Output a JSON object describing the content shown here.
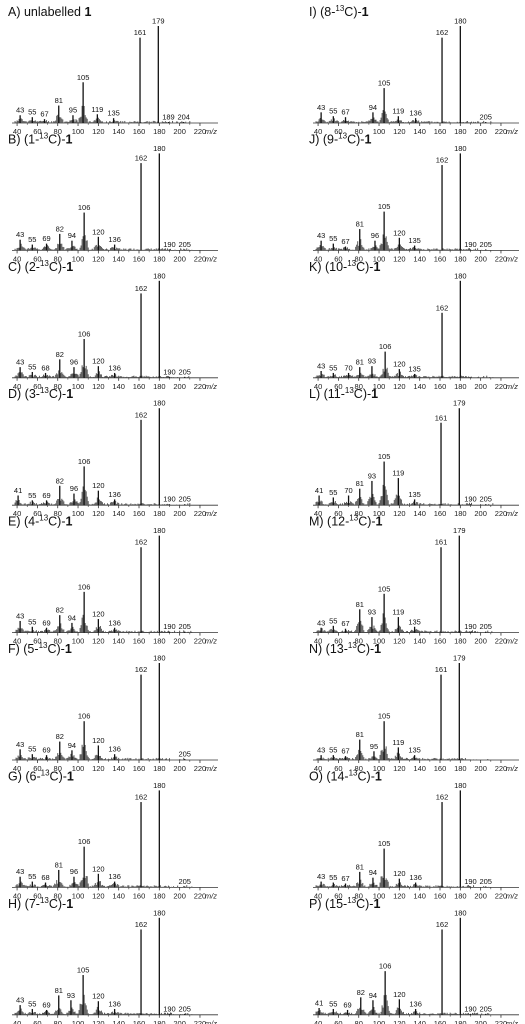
{
  "chart_data": [
    {
      "type": "bar",
      "title": "A) unlabelled 1",
      "x": [
        43,
        55,
        67,
        81,
        95,
        105,
        119,
        135,
        161,
        179,
        189,
        204
      ],
      "values": [
        8,
        6,
        4,
        18,
        8,
        42,
        9,
        5,
        88,
        100,
        1,
        1
      ],
      "labels": [
        43,
        55,
        67,
        81,
        95,
        105,
        119,
        135,
        161,
        179,
        189,
        204
      ],
      "xlabel": "m/z",
      "xticks": [
        40,
        60,
        80,
        100,
        120,
        140,
        160,
        180,
        200,
        220
      ],
      "xlim": [
        35,
        222
      ],
      "ylim": [
        0,
        100
      ]
    },
    {
      "type": "bar",
      "title": "I) (8-13C)-1",
      "x": [
        43,
        55,
        67,
        94,
        105,
        119,
        136,
        162,
        180,
        205
      ],
      "values": [
        11,
        7,
        6,
        11,
        36,
        7,
        5,
        88,
        100,
        1
      ],
      "labels": [
        43,
        55,
        67,
        94,
        105,
        119,
        136,
        162,
        180,
        205
      ],
      "xlabel": "m/z",
      "xticks": [
        40,
        60,
        80,
        100,
        120,
        140,
        160,
        180,
        200,
        220
      ],
      "xlim": [
        35,
        222
      ],
      "ylim": [
        0,
        100
      ]
    },
    {
      "type": "bar",
      "title": "B) (1-13C)-1",
      "x": [
        43,
        55,
        69,
        82,
        94,
        106,
        120,
        136,
        162,
        180,
        190,
        205
      ],
      "values": [
        11,
        6,
        7,
        17,
        10,
        39,
        14,
        6,
        90,
        100,
        1,
        1
      ],
      "labels": [
        43,
        55,
        69,
        82,
        94,
        106,
        120,
        136,
        162,
        180,
        190,
        205
      ],
      "xlabel": "m/z",
      "xticks": [
        40,
        60,
        80,
        100,
        120,
        140,
        160,
        180,
        200,
        220
      ],
      "xlim": [
        35,
        222
      ],
      "ylim": [
        0,
        100
      ]
    },
    {
      "type": "bar",
      "title": "J) (9-13C)-1",
      "x": [
        43,
        55,
        67,
        81,
        96,
        105,
        120,
        135,
        162,
        180,
        190,
        205
      ],
      "values": [
        10,
        7,
        4,
        22,
        10,
        40,
        13,
        5,
        88,
        100,
        1,
        1
      ],
      "labels": [
        43,
        55,
        67,
        81,
        96,
        105,
        120,
        135,
        162,
        180,
        190,
        205
      ],
      "xlabel": "m/z",
      "xticks": [
        40,
        60,
        80,
        100,
        120,
        140,
        160,
        180,
        200,
        220
      ],
      "xlim": [
        35,
        222
      ],
      "ylim": [
        0,
        100
      ]
    },
    {
      "type": "bar",
      "title": "C) (2-13C)-1",
      "x": [
        43,
        55,
        68,
        82,
        96,
        106,
        120,
        136,
        162,
        180,
        190,
        205
      ],
      "values": [
        11,
        6,
        5,
        19,
        11,
        40,
        12,
        5,
        87,
        100,
        1,
        1
      ],
      "labels": [
        43,
        55,
        68,
        82,
        96,
        106,
        120,
        136,
        162,
        180,
        190,
        205
      ],
      "xlabel": "m/z",
      "xticks": [
        40,
        60,
        80,
        100,
        120,
        140,
        160,
        180,
        200,
        220
      ],
      "xlim": [
        35,
        222
      ],
      "ylim": [
        0,
        100
      ]
    },
    {
      "type": "bar",
      "title": "K) (10-13C)-1",
      "x": [
        43,
        55,
        70,
        81,
        93,
        106,
        120,
        135,
        162,
        180
      ],
      "values": [
        7,
        5,
        5,
        11,
        12,
        27,
        9,
        4,
        67,
        100
      ],
      "labels": [
        43,
        55,
        70,
        81,
        93,
        106,
        120,
        135,
        162,
        180
      ],
      "xlabel": "m/z",
      "xticks": [
        40,
        60,
        80,
        100,
        120,
        140,
        160,
        180,
        200,
        220
      ],
      "xlim": [
        35,
        222
      ],
      "ylim": [
        0,
        100
      ]
    },
    {
      "type": "bar",
      "title": "D) (3-13C)-1",
      "x": [
        41,
        55,
        69,
        82,
        96,
        106,
        120,
        136,
        162,
        180,
        190,
        205
      ],
      "values": [
        10,
        5,
        5,
        20,
        12,
        40,
        15,
        6,
        88,
        100,
        1,
        1
      ],
      "labels": [
        41,
        55,
        69,
        82,
        96,
        106,
        120,
        136,
        162,
        180,
        190,
        205
      ],
      "xlabel": "m/z",
      "xticks": [
        40,
        60,
        80,
        100,
        120,
        140,
        160,
        180,
        200,
        220
      ],
      "xlim": [
        35,
        222
      ],
      "ylim": [
        0,
        100
      ]
    },
    {
      "type": "bar",
      "title": "L) (11-13C)-1",
      "x": [
        41,
        55,
        70,
        81,
        93,
        105,
        119,
        135,
        161,
        179,
        190,
        205
      ],
      "values": [
        10,
        8,
        10,
        17,
        25,
        45,
        28,
        6,
        85,
        100,
        1,
        1
      ],
      "labels": [
        41,
        55,
        70,
        81,
        93,
        105,
        119,
        135,
        161,
        179,
        190,
        205
      ],
      "xlabel": "m/z",
      "xticks": [
        40,
        60,
        80,
        100,
        120,
        140,
        160,
        180,
        200,
        220
      ],
      "xlim": [
        35,
        222
      ],
      "ylim": [
        0,
        100
      ]
    },
    {
      "type": "bar",
      "title": "E) (4-13C)-1",
      "x": [
        43,
        55,
        69,
        82,
        94,
        106,
        120,
        136,
        162,
        180,
        190,
        205
      ],
      "values": [
        12,
        6,
        5,
        18,
        10,
        42,
        14,
        5,
        88,
        100,
        1,
        1
      ],
      "labels": [
        43,
        55,
        69,
        82,
        94,
        106,
        120,
        136,
        162,
        180,
        190,
        205
      ],
      "xlabel": "m/z",
      "xticks": [
        40,
        60,
        80,
        100,
        120,
        140,
        160,
        180,
        200,
        220
      ],
      "xlim": [
        35,
        222
      ],
      "ylim": [
        0,
        100
      ]
    },
    {
      "type": "bar",
      "title": "M) (12-13C)-1",
      "x": [
        43,
        55,
        67,
        81,
        93,
        105,
        119,
        135,
        161,
        179,
        190,
        205
      ],
      "values": [
        5,
        7,
        4,
        24,
        16,
        40,
        16,
        6,
        88,
        100,
        1,
        1
      ],
      "labels": [
        43,
        55,
        67,
        81,
        93,
        105,
        119,
        135,
        161,
        179,
        190,
        205
      ],
      "xlabel": "m/z",
      "xticks": [
        40,
        60,
        80,
        100,
        120,
        140,
        160,
        180,
        200,
        220
      ],
      "xlim": [
        35,
        222
      ],
      "ylim": [
        0,
        100
      ]
    },
    {
      "type": "bar",
      "title": "F) (5-13C)-1",
      "x": [
        43,
        55,
        69,
        82,
        94,
        106,
        120,
        136,
        162,
        180,
        205
      ],
      "values": [
        11,
        6,
        5,
        19,
        10,
        40,
        15,
        6,
        88,
        100,
        1
      ],
      "labels": [
        43,
        55,
        69,
        82,
        94,
        106,
        120,
        136,
        162,
        180,
        205
      ],
      "xlabel": "m/z",
      "xticks": [
        40,
        60,
        80,
        100,
        120,
        140,
        160,
        180,
        200,
        220
      ],
      "xlim": [
        35,
        222
      ],
      "ylim": [
        0,
        100
      ]
    },
    {
      "type": "bar",
      "title": "N) (13-13C)-1",
      "x": [
        43,
        55,
        67,
        81,
        95,
        105,
        119,
        135,
        161,
        179
      ],
      "values": [
        5,
        5,
        4,
        21,
        9,
        40,
        13,
        5,
        88,
        100
      ],
      "labels": [
        43,
        55,
        67,
        81,
        95,
        105,
        119,
        135,
        161,
        179
      ],
      "xlabel": "m/z",
      "xticks": [
        40,
        60,
        80,
        100,
        120,
        140,
        160,
        180,
        200,
        220
      ],
      "xlim": [
        35,
        222
      ],
      "ylim": [
        0,
        100
      ]
    },
    {
      "type": "bar",
      "title": "G) (6-13C)-1",
      "x": [
        43,
        55,
        68,
        81,
        96,
        106,
        120,
        136,
        162,
        180,
        205
      ],
      "values": [
        11,
        6,
        5,
        18,
        11,
        42,
        14,
        6,
        88,
        100,
        1
      ],
      "labels": [
        43,
        55,
        68,
        81,
        96,
        106,
        120,
        136,
        162,
        180,
        205
      ],
      "xlabel": "m/z",
      "xticks": [
        40,
        60,
        80,
        100,
        120,
        140,
        160,
        180,
        200,
        220
      ],
      "xlim": [
        35,
        222
      ],
      "ylim": [
        0,
        100
      ]
    },
    {
      "type": "bar",
      "title": "O) (14-13C)-1",
      "x": [
        43,
        55,
        67,
        81,
        94,
        105,
        120,
        136,
        162,
        180,
        190,
        205
      ],
      "values": [
        6,
        5,
        4,
        16,
        10,
        40,
        9,
        5,
        88,
        100,
        1,
        1
      ],
      "labels": [
        43,
        55,
        67,
        81,
        94,
        105,
        120,
        136,
        162,
        180,
        190,
        205
      ],
      "xlabel": "m/z",
      "xticks": [
        40,
        60,
        80,
        100,
        120,
        140,
        160,
        180,
        200,
        220
      ],
      "xlim": [
        35,
        222
      ],
      "ylim": [
        0,
        100
      ]
    },
    {
      "type": "bar",
      "title": "H) (7-13C)-1",
      "x": [
        43,
        55,
        69,
        81,
        93,
        105,
        120,
        136,
        162,
        180,
        190,
        205
      ],
      "values": [
        10,
        6,
        5,
        20,
        15,
        41,
        14,
        6,
        88,
        100,
        1,
        1
      ],
      "labels": [
        43,
        55,
        69,
        81,
        93,
        105,
        120,
        136,
        162,
        180,
        190,
        205
      ],
      "xlabel": "m/z",
      "xticks": [
        40,
        60,
        80,
        100,
        120,
        140,
        160,
        180,
        200,
        220
      ],
      "xlim": [
        35,
        222
      ],
      "ylim": [
        0,
        100
      ]
    },
    {
      "type": "bar",
      "title": "P) (15-13C)-1",
      "x": [
        41,
        55,
        69,
        82,
        94,
        106,
        120,
        136,
        162,
        180,
        190,
        205
      ],
      "values": [
        7,
        6,
        5,
        18,
        15,
        45,
        16,
        6,
        88,
        100,
        1,
        1
      ],
      "labels": [
        41,
        55,
        69,
        82,
        94,
        106,
        120,
        136,
        162,
        180,
        190,
        205
      ],
      "xlabel": "m/z",
      "xticks": [
        40,
        60,
        80,
        100,
        120,
        140,
        160,
        180,
        200,
        220
      ],
      "xlim": [
        35,
        222
      ],
      "ylim": [
        0,
        100
      ]
    }
  ]
}
